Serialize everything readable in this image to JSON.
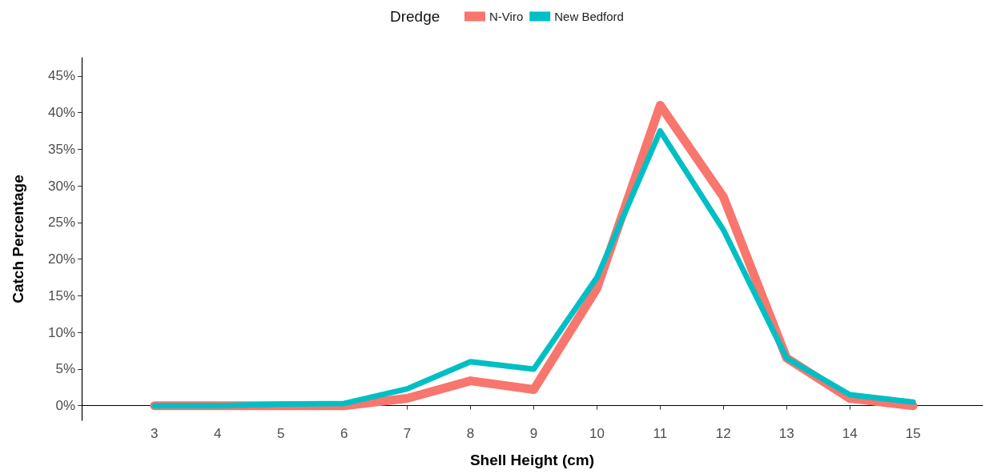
{
  "chart_data": {
    "type": "line",
    "xlabel": "Shell Height (cm)",
    "ylabel": "Catch Percentage",
    "legend_title": "Dredge",
    "legend": "top",
    "x": [
      3,
      4,
      5,
      6,
      7,
      8,
      9,
      10,
      11,
      12,
      13,
      14,
      15
    ],
    "series": [
      {
        "name": "N-Viro",
        "color": "#f8766d",
        "values": [
          0,
          0,
          0,
          0,
          1,
          3.4,
          2.2,
          16,
          41,
          28.5,
          6.5,
          1,
          0
        ]
      },
      {
        "name": "New Bedford",
        "color": "#00bfc4",
        "values": [
          0,
          0,
          0.2,
          0.3,
          2.3,
          6,
          5,
          17.5,
          37.5,
          24,
          6.5,
          1.5,
          0.5
        ]
      }
    ],
    "xlim": [
      1.85,
      16.1
    ],
    "xticks": [
      3,
      4,
      5,
      6,
      7,
      8,
      9,
      10,
      11,
      12,
      13,
      14,
      15
    ],
    "ylim": [
      -2,
      47.5
    ],
    "yticks": [
      {
        "value": 0,
        "label": "0%"
      },
      {
        "value": 5,
        "label": "5%"
      },
      {
        "value": 10,
        "label": "10%"
      },
      {
        "value": 15,
        "label": "15%"
      },
      {
        "value": 20,
        "label": "20%"
      },
      {
        "value": 25,
        "label": "25%"
      },
      {
        "value": 30,
        "label": "30%"
      },
      {
        "value": 35,
        "label": "35%"
      },
      {
        "value": 40,
        "label": "40%"
      },
      {
        "value": 45,
        "label": "45%"
      }
    ],
    "grid": false,
    "marker": "none",
    "line_style": "solid"
  }
}
